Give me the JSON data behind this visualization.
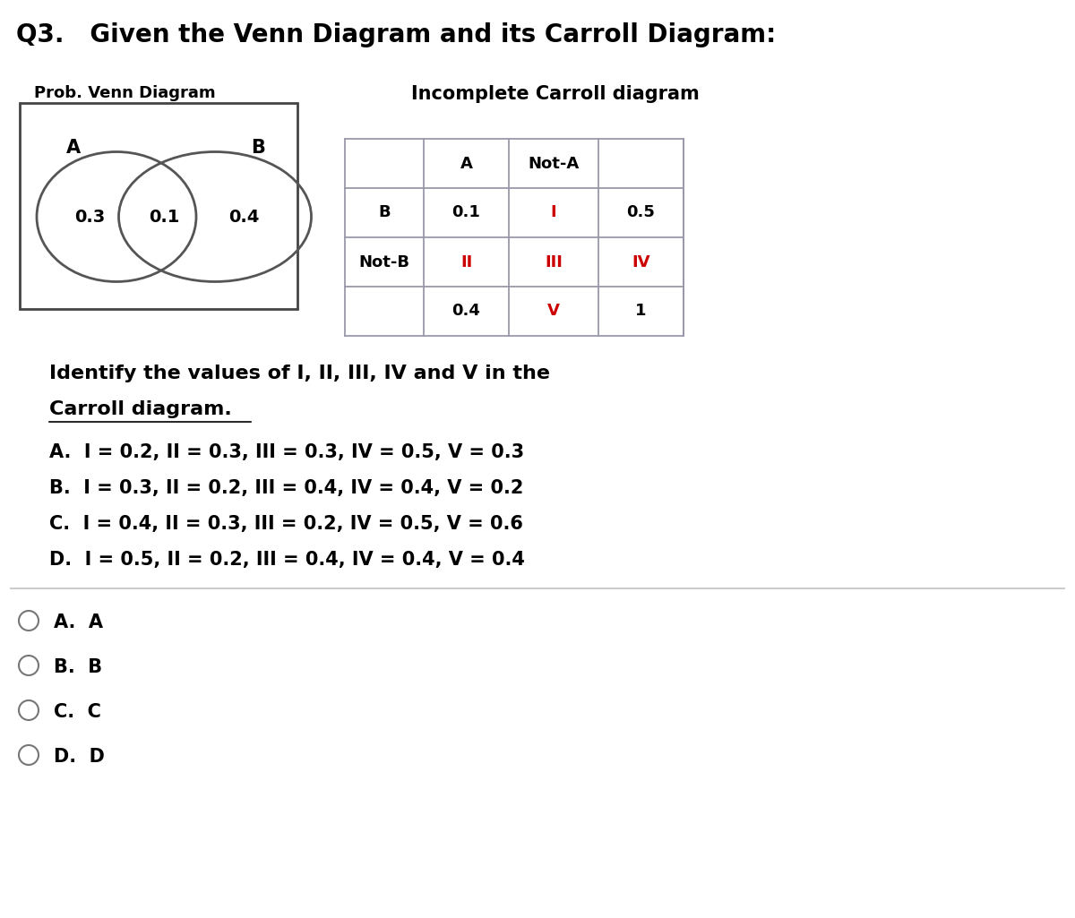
{
  "title": "Q3.   Given the Venn Diagram and its Carroll Diagram:",
  "venn_label": "Prob. Venn Diagram",
  "carroll_label": "Incomplete Carroll diagram",
  "venn_values": [
    "0.3",
    "0.1",
    "0.4"
  ],
  "question_line1": "Identify the values of I, II, III, IV and V in the",
  "question_line2": "Carroll diagram.",
  "options": [
    "A.  I = 0.2, II = 0.3, III = 0.3, IV = 0.5, V = 0.3",
    "B.  I = 0.3, II = 0.2, III = 0.4, IV = 0.4, V = 0.2",
    "C.  I = 0.4, II = 0.3, III = 0.2, IV = 0.5, V = 0.6",
    "D.  I = 0.5, II = 0.2, III = 0.4, IV = 0.4, V = 0.4"
  ],
  "radio_labels": [
    "A.  A",
    "B.  B",
    "C.  C",
    "D.  D"
  ],
  "background_color": "#ffffff",
  "text_color": "#000000",
  "red_color": "#cc0000",
  "grid_color": "#9999aa"
}
